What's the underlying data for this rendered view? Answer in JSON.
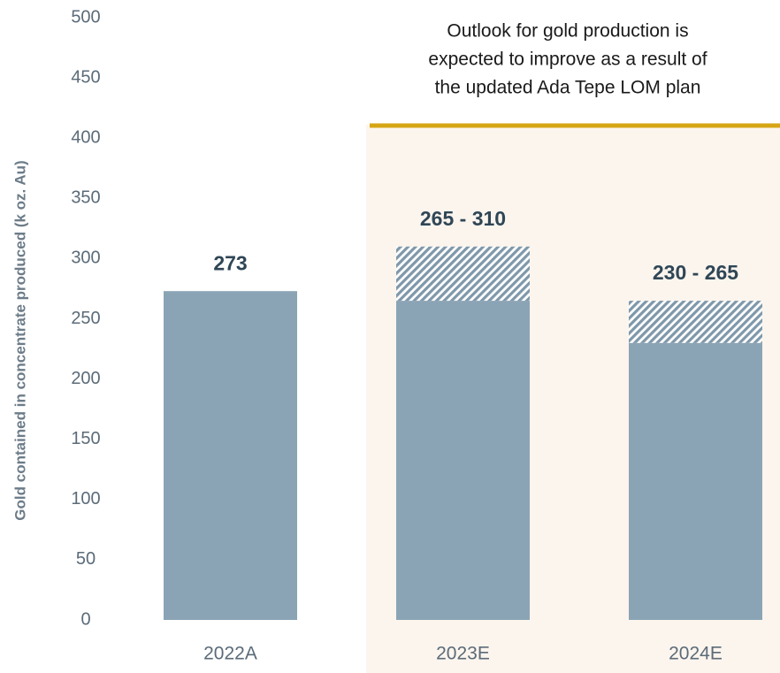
{
  "chart_data": {
    "type": "bar",
    "stacked": true,
    "categories": [
      "2022A",
      "2023E",
      "2024E"
    ],
    "series": [
      {
        "color": "#8ba4b5",
        "values": [
          273,
          265,
          230
        ]
      },
      {
        "color": "#8ba4b5",
        "hatch": true,
        "values": [
          null,
          45,
          35
        ]
      }
    ],
    "bar_labels": [
      "273",
      "265 - 310",
      "230 - 265"
    ],
    "ylabel": "Gold contained in concentrate produced (k oz. Au)",
    "annotation": [
      "Outlook for gold production is",
      "expected to improve as a result of",
      "the updated Ada Tepe LOM plan"
    ],
    "ylim": [
      0,
      500
    ],
    "yticks": [
      0,
      50,
      100,
      150,
      200,
      250,
      300,
      350,
      400,
      450,
      500
    ],
    "grid": false
  }
}
